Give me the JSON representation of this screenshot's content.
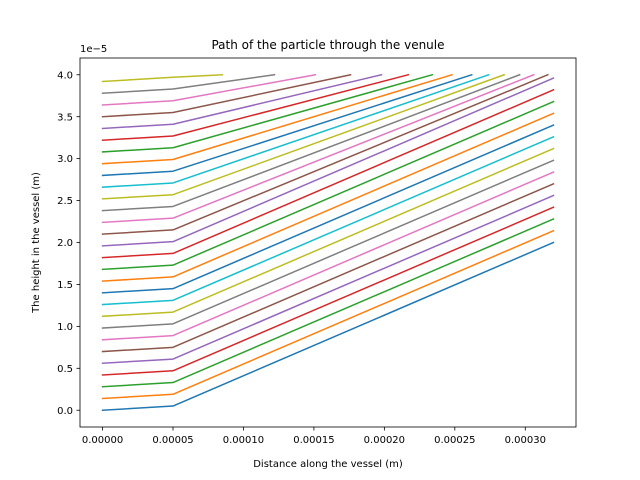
{
  "chart_data": {
    "type": "line",
    "title": "Path of the particle through the venule",
    "xlabel": "Distance along the vessel (m)",
    "ylabel": "The height in the vessel (m)",
    "y_offset_text": "1e−5",
    "xlim": [
      -1.6e-05,
      0.000336
    ],
    "ylim": [
      -2e-06,
      4.2e-05
    ],
    "x_ticks": [
      0,
      5e-05,
      0.0001,
      0.00015,
      0.0002,
      0.00025,
      0.0003
    ],
    "x_tick_labels": [
      "0.00000",
      "0.00005",
      "0.00010",
      "0.00015",
      "0.00020",
      "0.00025",
      "0.00030"
    ],
    "y_ticks": [
      0,
      5e-06,
      1e-05,
      1.5e-05,
      2e-05,
      2.5e-05,
      3e-05,
      3.5e-05,
      4e-05
    ],
    "y_tick_labels": [
      "0.0",
      "0.5",
      "1.0",
      "1.5",
      "2.0",
      "2.5",
      "3.0",
      "3.5",
      "4.0"
    ],
    "grid": false,
    "legend": "none",
    "series": [
      {
        "color": "#1f77b4",
        "points": [
          [
            0,
            0
          ],
          [
            5e-05,
            5e-07
          ],
          [
            0.00032,
            2e-05
          ]
        ]
      },
      {
        "color": "#ff7f0e",
        "points": [
          [
            0,
            1.4e-06
          ],
          [
            5e-05,
            1.9e-06
          ],
          [
            0.00032,
            2.14e-05
          ]
        ]
      },
      {
        "color": "#2ca02c",
        "points": [
          [
            0,
            2.8e-06
          ],
          [
            5e-05,
            3.3e-06
          ],
          [
            0.00032,
            2.28e-05
          ]
        ]
      },
      {
        "color": "#d62728",
        "points": [
          [
            0,
            4.2e-06
          ],
          [
            5e-05,
            4.7e-06
          ],
          [
            0.00032,
            2.42e-05
          ]
        ]
      },
      {
        "color": "#9467bd",
        "points": [
          [
            0,
            5.6e-06
          ],
          [
            5e-05,
            6.1e-06
          ],
          [
            0.00032,
            2.56e-05
          ]
        ]
      },
      {
        "color": "#8c564b",
        "points": [
          [
            0,
            7e-06
          ],
          [
            5e-05,
            7.5e-06
          ],
          [
            0.00032,
            2.7e-05
          ]
        ]
      },
      {
        "color": "#e377c2",
        "points": [
          [
            0,
            8.4e-06
          ],
          [
            5e-05,
            8.9e-06
          ],
          [
            0.00032,
            2.84e-05
          ]
        ]
      },
      {
        "color": "#7f7f7f",
        "points": [
          [
            0,
            9.8e-06
          ],
          [
            5e-05,
            1.03e-05
          ],
          [
            0.00032,
            2.98e-05
          ]
        ]
      },
      {
        "color": "#bcbd22",
        "points": [
          [
            0,
            1.12e-05
          ],
          [
            5e-05,
            1.17e-05
          ],
          [
            0.00032,
            3.12e-05
          ]
        ]
      },
      {
        "color": "#17becf",
        "points": [
          [
            0,
            1.26e-05
          ],
          [
            5e-05,
            1.31e-05
          ],
          [
            0.00032,
            3.26e-05
          ]
        ]
      },
      {
        "color": "#1f77b4",
        "points": [
          [
            0,
            1.4e-05
          ],
          [
            5e-05,
            1.45e-05
          ],
          [
            0.00032,
            3.4e-05
          ]
        ]
      },
      {
        "color": "#ff7f0e",
        "points": [
          [
            0,
            1.54e-05
          ],
          [
            5e-05,
            1.59e-05
          ],
          [
            0.00032,
            3.54e-05
          ]
        ]
      },
      {
        "color": "#2ca02c",
        "points": [
          [
            0,
            1.68e-05
          ],
          [
            5e-05,
            1.73e-05
          ],
          [
            0.00032,
            3.68e-05
          ]
        ]
      },
      {
        "color": "#d62728",
        "points": [
          [
            0,
            1.82e-05
          ],
          [
            5e-05,
            1.87e-05
          ],
          [
            0.00032,
            3.82e-05
          ]
        ]
      },
      {
        "color": "#9467bd",
        "points": [
          [
            0,
            1.96e-05
          ],
          [
            5e-05,
            2.01e-05
          ],
          [
            0.00032,
            3.96e-05
          ]
        ]
      },
      {
        "color": "#8c564b",
        "points": [
          [
            0,
            2.1e-05
          ],
          [
            5e-05,
            2.15e-05
          ],
          [
            0.000316,
            4e-05
          ]
        ]
      },
      {
        "color": "#e377c2",
        "points": [
          [
            0,
            2.24e-05
          ],
          [
            5e-05,
            2.29e-05
          ],
          [
            0.000306,
            4e-05
          ]
        ]
      },
      {
        "color": "#7f7f7f",
        "points": [
          [
            0,
            2.38e-05
          ],
          [
            5e-05,
            2.43e-05
          ],
          [
            0.000296,
            4e-05
          ]
        ]
      },
      {
        "color": "#bcbd22",
        "points": [
          [
            0,
            2.52e-05
          ],
          [
            5e-05,
            2.57e-05
          ],
          [
            0.000285,
            4e-05
          ]
        ]
      },
      {
        "color": "#17becf",
        "points": [
          [
            0,
            2.66e-05
          ],
          [
            5e-05,
            2.71e-05
          ],
          [
            0.000274,
            4e-05
          ]
        ]
      },
      {
        "color": "#1f77b4",
        "points": [
          [
            0,
            2.8e-05
          ],
          [
            5e-05,
            2.85e-05
          ],
          [
            0.000262,
            4e-05
          ]
        ]
      },
      {
        "color": "#ff7f0e",
        "points": [
          [
            0,
            2.94e-05
          ],
          [
            5e-05,
            2.99e-05
          ],
          [
            0.000248,
            4e-05
          ]
        ]
      },
      {
        "color": "#2ca02c",
        "points": [
          [
            0,
            3.08e-05
          ],
          [
            5e-05,
            3.13e-05
          ],
          [
            0.000234,
            4e-05
          ]
        ]
      },
      {
        "color": "#d62728",
        "points": [
          [
            0,
            3.22e-05
          ],
          [
            5e-05,
            3.27e-05
          ],
          [
            0.000217,
            4e-05
          ]
        ]
      },
      {
        "color": "#9467bd",
        "points": [
          [
            0,
            3.36e-05
          ],
          [
            5e-05,
            3.41e-05
          ],
          [
            0.000198,
            4e-05
          ]
        ]
      },
      {
        "color": "#8c564b",
        "points": [
          [
            0,
            3.5e-05
          ],
          [
            5e-05,
            3.55e-05
          ],
          [
            0.000176,
            4e-05
          ]
        ]
      },
      {
        "color": "#e377c2",
        "points": [
          [
            0,
            3.64e-05
          ],
          [
            5e-05,
            3.69e-05
          ],
          [
            0.000151,
            4e-05
          ]
        ]
      },
      {
        "color": "#7f7f7f",
        "points": [
          [
            0,
            3.78e-05
          ],
          [
            5e-05,
            3.83e-05
          ],
          [
            0.000122,
            4e-05
          ]
        ]
      },
      {
        "color": "#bcbd22",
        "points": [
          [
            0,
            3.92e-05
          ],
          [
            5e-05,
            3.97e-05
          ],
          [
            8.5e-05,
            4e-05
          ]
        ]
      }
    ]
  }
}
